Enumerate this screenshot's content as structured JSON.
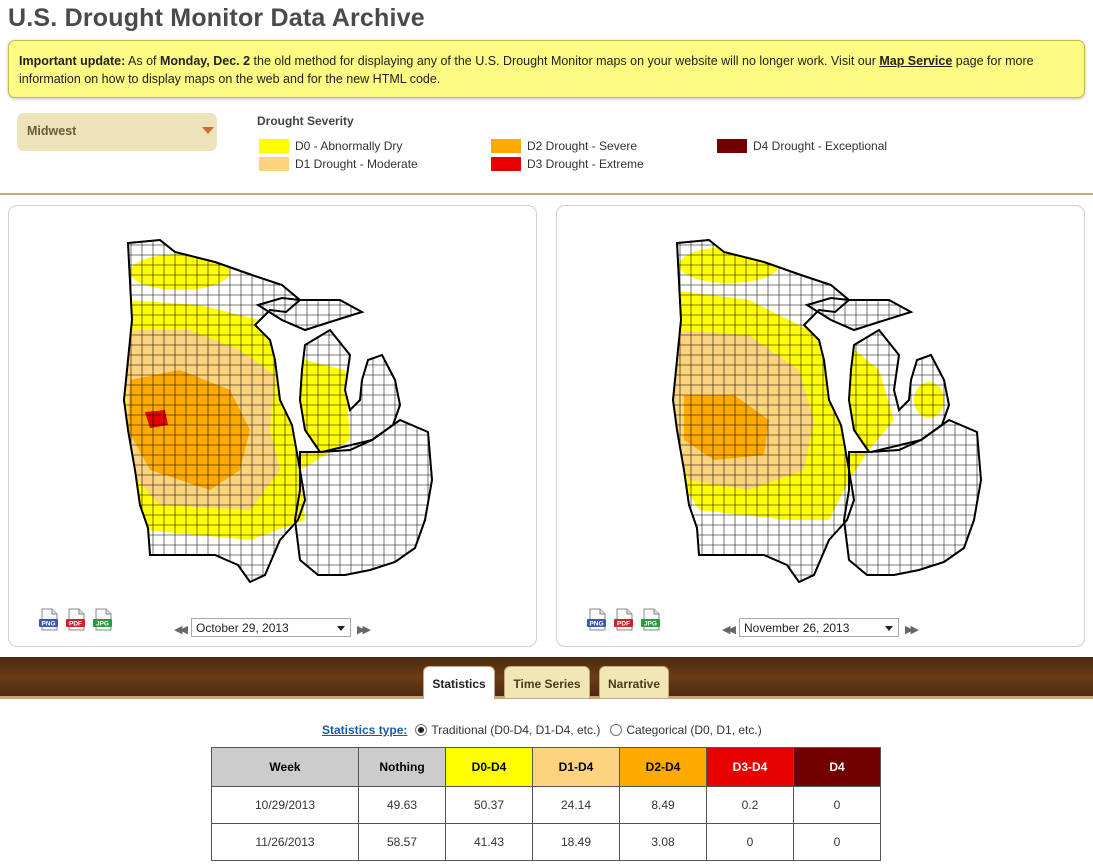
{
  "title": "U.S. Drought Monitor Data Archive",
  "notice": {
    "lead": "Important update:",
    "text1": " As of ",
    "date": "Monday, Dec. 2",
    "text2": " the old method for displaying any of the U.S. Drought Monitor maps on your website will no longer work. Visit our ",
    "link": "Map Service",
    "text3": " page for more information on how to display maps on the web and for the new HTML code."
  },
  "region": {
    "selected": "Midwest"
  },
  "legend": {
    "title": "Drought Severity",
    "items": [
      {
        "label": "D0 - Abnormally Dry",
        "color": "#ffff00"
      },
      {
        "label": "D1 Drought - Moderate",
        "color": "#fcd37f"
      },
      {
        "label": "D2 Drought - Severe",
        "color": "#ffaa00"
      },
      {
        "label": "D3 Drought - Extreme",
        "color": "#e60000"
      },
      {
        "label": "D4 Drought - Exceptional",
        "color": "#730000"
      }
    ]
  },
  "downloads": [
    "PNG",
    "PDF",
    "JPG"
  ],
  "maps": [
    {
      "date": "October 29, 2013"
    },
    {
      "date": "November 26, 2013"
    }
  ],
  "tabs": [
    {
      "label": "Statistics",
      "active": true
    },
    {
      "label": "Time Series",
      "active": false
    },
    {
      "label": "Narrative",
      "active": false
    }
  ],
  "stats_type": {
    "label": "Statistics type",
    "options": [
      {
        "label": "Traditional (D0-D4, D1-D4, etc.)",
        "selected": true
      },
      {
        "label": "Categorical (D0, D1, etc.)",
        "selected": false
      }
    ]
  },
  "table": {
    "headers": [
      {
        "label": "Week",
        "bg": "#cccccc",
        "fg": "#000000"
      },
      {
        "label": "Nothing",
        "bg": "#cccccc",
        "fg": "#000000"
      },
      {
        "label": "D0-D4",
        "bg": "#ffff00",
        "fg": "#000000"
      },
      {
        "label": "D1-D4",
        "bg": "#fcd37f",
        "fg": "#000000"
      },
      {
        "label": "D2-D4",
        "bg": "#ffaa00",
        "fg": "#000000"
      },
      {
        "label": "D3-D4",
        "bg": "#e60000",
        "fg": "#ffffff"
      },
      {
        "label": "D4",
        "bg": "#730000",
        "fg": "#ffffff"
      }
    ],
    "rows": [
      [
        "10/29/2013",
        "49.63",
        "50.37",
        "24.14",
        "8.49",
        "0.2",
        "0"
      ],
      [
        "11/26/2013",
        "58.57",
        "41.43",
        "18.49",
        "3.08",
        "0",
        "0"
      ]
    ]
  }
}
